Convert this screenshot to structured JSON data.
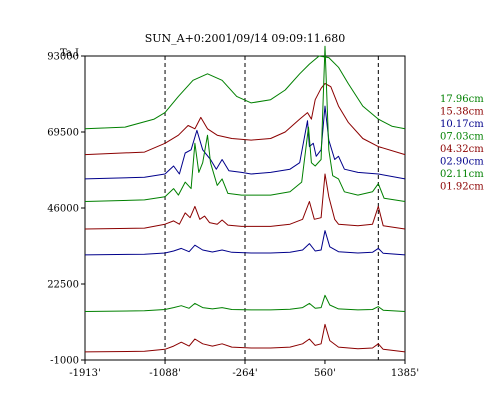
{
  "chart_data": {
    "type": "line",
    "title": "SUN_A+0:2001/09/14 09:09:11.680",
    "ylabel": "Ta,I",
    "xlim": [
      -1913,
      1385
    ],
    "ylim": [
      -1000,
      93000
    ],
    "x_ticks": [
      "-1913'",
      "-1088'",
      "-264'",
      "560'",
      "1385'"
    ],
    "y_ticks": [
      "93000",
      "69500",
      "46000",
      "22500",
      "-1000"
    ],
    "dashed_x": [
      -1088,
      -264,
      1110
    ],
    "legend_position": "right",
    "series": [
      {
        "name": "17.96cm",
        "color": "#008000",
        "baseline": 70500,
        "points": [
          [
            -1913,
            0
          ],
          [
            -1500,
            500
          ],
          [
            -1200,
            3000
          ],
          [
            -1088,
            5000
          ],
          [
            -950,
            10000
          ],
          [
            -800,
            15000
          ],
          [
            -650,
            17000
          ],
          [
            -500,
            15000
          ],
          [
            -350,
            10000
          ],
          [
            -200,
            8000
          ],
          [
            0,
            9000
          ],
          [
            150,
            12000
          ],
          [
            300,
            17000
          ],
          [
            400,
            20000
          ],
          [
            500,
            22500
          ],
          [
            600,
            22000
          ],
          [
            700,
            19000
          ],
          [
            800,
            14000
          ],
          [
            950,
            7000
          ],
          [
            1110,
            3000
          ],
          [
            1250,
            800
          ],
          [
            1385,
            0
          ]
        ]
      },
      {
        "name": "15.38cm",
        "color": "#8b0000",
        "baseline": 62500,
        "points": [
          [
            -1913,
            0
          ],
          [
            -1300,
            800
          ],
          [
            -1088,
            3500
          ],
          [
            -950,
            6000
          ],
          [
            -850,
            9000
          ],
          [
            -780,
            8000
          ],
          [
            -720,
            11500
          ],
          [
            -650,
            8000
          ],
          [
            -550,
            6000
          ],
          [
            -400,
            5000
          ],
          [
            -200,
            4500
          ],
          [
            0,
            5000
          ],
          [
            150,
            7000
          ],
          [
            300,
            11000
          ],
          [
            380,
            13000
          ],
          [
            420,
            11000
          ],
          [
            460,
            17000
          ],
          [
            520,
            20500
          ],
          [
            560,
            22000
          ],
          [
            620,
            21000
          ],
          [
            700,
            15000
          ],
          [
            800,
            10000
          ],
          [
            950,
            5000
          ],
          [
            1110,
            2500
          ],
          [
            1385,
            0
          ]
        ]
      },
      {
        "name": "10.17cm",
        "color": "#00008b",
        "baseline": 55000,
        "points": [
          [
            -1913,
            0
          ],
          [
            -1300,
            500
          ],
          [
            -1088,
            1500
          ],
          [
            -1000,
            4000
          ],
          [
            -940,
            1500
          ],
          [
            -880,
            8000
          ],
          [
            -820,
            9000
          ],
          [
            -760,
            15000
          ],
          [
            -700,
            9000
          ],
          [
            -620,
            6000
          ],
          [
            -560,
            3000
          ],
          [
            -500,
            6000
          ],
          [
            -430,
            2500
          ],
          [
            -300,
            2000
          ],
          [
            -200,
            1500
          ],
          [
            0,
            2000
          ],
          [
            200,
            3000
          ],
          [
            300,
            5000
          ],
          [
            380,
            18000
          ],
          [
            400,
            10000
          ],
          [
            440,
            11000
          ],
          [
            470,
            7000
          ],
          [
            520,
            9000
          ],
          [
            560,
            22500
          ],
          [
            600,
            12000
          ],
          [
            660,
            6000
          ],
          [
            700,
            7000
          ],
          [
            760,
            3000
          ],
          [
            900,
            2000
          ],
          [
            1110,
            1500
          ],
          [
            1385,
            0
          ]
        ]
      },
      {
        "name": "07.03cm",
        "color": "#008000",
        "baseline": 48000,
        "points": [
          [
            -1913,
            0
          ],
          [
            -1300,
            500
          ],
          [
            -1088,
            1500
          ],
          [
            -1000,
            4000
          ],
          [
            -950,
            2000
          ],
          [
            -880,
            6000
          ],
          [
            -820,
            4000
          ],
          [
            -780,
            18000
          ],
          [
            -740,
            9000
          ],
          [
            -700,
            12000
          ],
          [
            -650,
            20500
          ],
          [
            -620,
            12000
          ],
          [
            -550,
            5000
          ],
          [
            -500,
            7000
          ],
          [
            -440,
            2500
          ],
          [
            -300,
            2000
          ],
          [
            0,
            2000
          ],
          [
            200,
            3000
          ],
          [
            320,
            6000
          ],
          [
            390,
            23000
          ],
          [
            420,
            12000
          ],
          [
            460,
            11000
          ],
          [
            520,
            13000
          ],
          [
            560,
            48000
          ],
          [
            600,
            16000
          ],
          [
            640,
            8000
          ],
          [
            700,
            7000
          ],
          [
            760,
            3000
          ],
          [
            900,
            2000
          ],
          [
            1050,
            3000
          ],
          [
            1110,
            5500
          ],
          [
            1170,
            1000
          ],
          [
            1385,
            0
          ]
        ]
      },
      {
        "name": "04.32cm",
        "color": "#8b0000",
        "baseline": 39500,
        "points": [
          [
            -1913,
            0
          ],
          [
            -1300,
            300
          ],
          [
            -1088,
            1500
          ],
          [
            -1000,
            2500
          ],
          [
            -940,
            1500
          ],
          [
            -880,
            5000
          ],
          [
            -830,
            3500
          ],
          [
            -780,
            7000
          ],
          [
            -730,
            3000
          ],
          [
            -680,
            4000
          ],
          [
            -630,
            2000
          ],
          [
            -550,
            1500
          ],
          [
            -500,
            2800
          ],
          [
            -440,
            1200
          ],
          [
            -300,
            800
          ],
          [
            0,
            800
          ],
          [
            200,
            1500
          ],
          [
            330,
            3000
          ],
          [
            400,
            8500
          ],
          [
            450,
            3000
          ],
          [
            520,
            3500
          ],
          [
            560,
            17000
          ],
          [
            600,
            10000
          ],
          [
            660,
            3000
          ],
          [
            700,
            1500
          ],
          [
            900,
            1000
          ],
          [
            1050,
            1500
          ],
          [
            1110,
            7000
          ],
          [
            1160,
            1000
          ],
          [
            1385,
            0
          ]
        ]
      },
      {
        "name": "02.90cm",
        "color": "#00008b",
        "baseline": 31500,
        "points": [
          [
            -1913,
            0
          ],
          [
            -1300,
            200
          ],
          [
            -1088,
            600
          ],
          [
            -1000,
            1200
          ],
          [
            -920,
            2000
          ],
          [
            -840,
            1000
          ],
          [
            -780,
            3000
          ],
          [
            -700,
            1500
          ],
          [
            -600,
            900
          ],
          [
            -500,
            1500
          ],
          [
            -400,
            800
          ],
          [
            -200,
            600
          ],
          [
            0,
            600
          ],
          [
            200,
            800
          ],
          [
            330,
            1500
          ],
          [
            400,
            3500
          ],
          [
            460,
            1200
          ],
          [
            520,
            1500
          ],
          [
            560,
            7500
          ],
          [
            610,
            2500
          ],
          [
            700,
            1000
          ],
          [
            900,
            600
          ],
          [
            1050,
            800
          ],
          [
            1110,
            2000
          ],
          [
            1160,
            500
          ],
          [
            1385,
            0
          ]
        ]
      },
      {
        "name": "02.11cm",
        "color": "#008000",
        "baseline": 14000,
        "points": [
          [
            -1913,
            0
          ],
          [
            -1300,
            200
          ],
          [
            -1088,
            600
          ],
          [
            -1000,
            1200
          ],
          [
            -920,
            1800
          ],
          [
            -840,
            1000
          ],
          [
            -780,
            2500
          ],
          [
            -700,
            1200
          ],
          [
            -600,
            800
          ],
          [
            -500,
            1200
          ],
          [
            -400,
            600
          ],
          [
            -200,
            500
          ],
          [
            0,
            500
          ],
          [
            200,
            700
          ],
          [
            330,
            1200
          ],
          [
            400,
            2500
          ],
          [
            460,
            1000
          ],
          [
            520,
            1200
          ],
          [
            560,
            5000
          ],
          [
            610,
            2000
          ],
          [
            700,
            800
          ],
          [
            900,
            500
          ],
          [
            1050,
            600
          ],
          [
            1110,
            1500
          ],
          [
            1160,
            400
          ],
          [
            1385,
            0
          ]
        ]
      },
      {
        "name": "01.92cm",
        "color": "#8b0000",
        "baseline": 1500,
        "points": [
          [
            -1913,
            0
          ],
          [
            -1300,
            200
          ],
          [
            -1088,
            800
          ],
          [
            -1000,
            1800
          ],
          [
            -920,
            3000
          ],
          [
            -840,
            1800
          ],
          [
            -780,
            4000
          ],
          [
            -700,
            2500
          ],
          [
            -600,
            1800
          ],
          [
            -500,
            2500
          ],
          [
            -400,
            1500
          ],
          [
            -200,
            1200
          ],
          [
            0,
            1200
          ],
          [
            200,
            1500
          ],
          [
            330,
            2500
          ],
          [
            400,
            4000
          ],
          [
            460,
            2000
          ],
          [
            520,
            2500
          ],
          [
            560,
            8500
          ],
          [
            610,
            3500
          ],
          [
            700,
            1500
          ],
          [
            900,
            1000
          ],
          [
            1050,
            1200
          ],
          [
            1110,
            2500
          ],
          [
            1160,
            800
          ],
          [
            1385,
            0
          ]
        ]
      }
    ]
  }
}
